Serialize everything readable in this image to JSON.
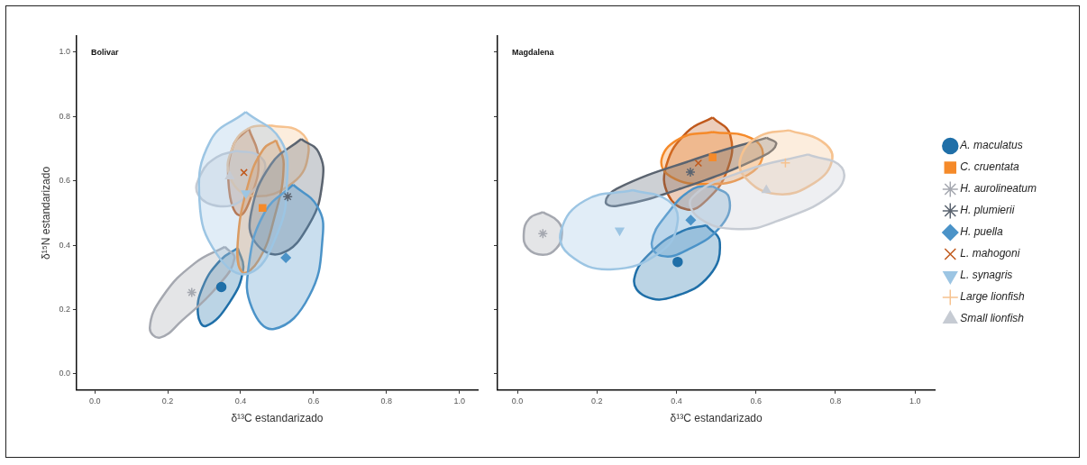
{
  "chart_data": [
    {
      "type": "scatter",
      "title": "Bolivar",
      "xlabel": "δ¹³C estandarizado",
      "ylabel": "δ¹⁵N estandarizado",
      "xlim": [
        -0.05,
        1.05
      ],
      "ylim": [
        -0.05,
        1.05
      ],
      "xticks": [
        {
          "value": 0,
          "label": "0.0"
        },
        {
          "value": 0.2,
          "label": "0.2"
        },
        {
          "value": 0.4,
          "label": "0.4"
        },
        {
          "value": 0.6,
          "label": "0.6"
        },
        {
          "value": 0.8,
          "label": "0.8"
        },
        {
          "value": 1,
          "label": "1.0"
        }
      ],
      "yticks": [
        {
          "value": 0,
          "label": "0.0"
        },
        {
          "value": 0.2,
          "label": "0.2"
        },
        {
          "value": 0.4,
          "label": "0.4"
        },
        {
          "value": 0.6,
          "label": "0.6"
        },
        {
          "value": 0.8,
          "label": "0.8"
        },
        {
          "value": 1,
          "label": "1.0"
        }
      ],
      "series": [
        {
          "type": "area",
          "color": "#9cc5e3",
          "x": [
            0.414,
            0.51,
            0.527,
            0.501,
            0.422,
            0.335,
            0.287,
            0.318
          ],
          "values": [
            0.814,
            0.726,
            0.595,
            0.437,
            0.312,
            0.372,
            0.54,
            0.726
          ]
        },
        {
          "type": "area",
          "color": "#a5a8b0",
          "x": [
            0.357,
            0.383,
            0.335,
            0.24,
            0.179,
            0.151,
            0.187,
            0.274
          ],
          "values": [
            0.395,
            0.358,
            0.27,
            0.167,
            0.113,
            0.144,
            0.242,
            0.344
          ]
        },
        {
          "type": "area",
          "color": "#4b93c8",
          "x": [
            0.544,
            0.61,
            0.625,
            0.588,
            0.492,
            0.431,
            0.422,
            0.466
          ],
          "values": [
            0.588,
            0.521,
            0.428,
            0.242,
            0.14,
            0.205,
            0.335,
            0.502
          ]
        },
        {
          "type": "area",
          "color": "#5b6470",
          "x": [
            0.566,
            0.614,
            0.624,
            0.588,
            0.51,
            0.44,
            0.429,
            0.483
          ],
          "values": [
            0.73,
            0.688,
            0.595,
            0.465,
            0.374,
            0.409,
            0.502,
            0.651
          ]
        },
        {
          "type": "area",
          "color": "#f58a2a",
          "x": [
            0.497,
            0.518,
            0.492,
            0.449,
            0.405,
            0.392,
            0.422,
            0.462
          ],
          "values": [
            0.726,
            0.651,
            0.484,
            0.353,
            0.316,
            0.409,
            0.595,
            0.698
          ]
        },
        {
          "type": "area",
          "color": "#c6cbd3",
          "x": [
            0.388,
            0.449,
            0.466,
            0.414,
            0.344,
            0.283,
            0.292,
            0.335
          ],
          "values": [
            0.693,
            0.679,
            0.633,
            0.549,
            0.521,
            0.558,
            0.623,
            0.674
          ]
        },
        {
          "type": "area",
          "color": "#f6c28f",
          "x": [
            0.483,
            0.562,
            0.586,
            0.544,
            0.431,
            0.37,
            0.379,
            0.422
          ],
          "values": [
            0.772,
            0.753,
            0.688,
            0.595,
            0.553,
            0.614,
            0.707,
            0.763
          ]
        },
        {
          "type": "area",
          "color": "#c0591c",
          "x": [
            0.422,
            0.449,
            0.431,
            0.396,
            0.368,
            0.379
          ],
          "values": [
            0.763,
            0.67,
            0.558,
            0.493,
            0.577,
            0.707
          ]
        },
        {
          "type": "area",
          "color": "#1f6fa8",
          "x": [
            0.392,
            0.407,
            0.37,
            0.305,
            0.283,
            0.296,
            0.344
          ],
          "values": [
            0.391,
            0.326,
            0.223,
            0.149,
            0.186,
            0.27,
            0.353
          ]
        },
        {
          "color": "#1f6fa8",
          "marker": "circle",
          "x": [
            0.347
          ],
          "values": [
            0.27
          ]
        },
        {
          "color": "#f58a2a",
          "marker": "square",
          "x": [
            0.46
          ],
          "values": [
            0.516
          ]
        },
        {
          "color": "#a5a8b0",
          "x": [
            0.266
          ],
          "values": [
            0.253
          ]
        },
        {
          "color": "#5b6470",
          "x": [
            0.529
          ],
          "values": [
            0.551
          ]
        },
        {
          "color": "#4b93c8",
          "marker": "diamond",
          "x": [
            0.524
          ],
          "values": [
            0.361
          ]
        },
        {
          "color": "#c0591c",
          "marker": "cross",
          "x": [
            0.409
          ],
          "values": [
            0.626
          ]
        },
        {
          "color": "#9cc5e3",
          "marker": "triangle-down",
          "x": [
            0.414
          ],
          "values": [
            0.561
          ]
        },
        {
          "color": "#c6cbd3",
          "marker": "triangle",
          "x": [
            0.37
          ],
          "values": [
            0.614
          ]
        }
      ]
    },
    {
      "type": "scatter",
      "title": "Magdalena",
      "xlabel": "δ¹³C estandarizado",
      "tick_labels": "x",
      "legend": "right",
      "xlim": [
        -0.05,
        1.05
      ],
      "ylim": [
        -0.05,
        1.05
      ],
      "xticks": [
        {
          "value": 0,
          "label": "0.0"
        },
        {
          "value": 0.2,
          "label": "0.2"
        },
        {
          "value": 0.4,
          "label": "0.4"
        },
        {
          "value": 0.6,
          "label": "0.6"
        },
        {
          "value": 0.8,
          "label": "0.8"
        },
        {
          "value": 1,
          "label": "1.0"
        }
      ],
      "yticks": [
        {
          "value": 0,
          "label": null
        },
        {
          "value": 0.2,
          "label": null
        },
        {
          "value": 0.4,
          "label": null
        },
        {
          "value": 0.6,
          "label": null
        },
        {
          "value": 0.8,
          "label": null
        },
        {
          "value": 1,
          "label": null
        }
      ],
      "series": [
        {
          "type": "area",
          "color": "#c6cbd3",
          "x": [
            0.731,
            0.816,
            0.8,
            0.651,
            0.555,
            0.459,
            0.439,
            0.571
          ],
          "values": [
            0.682,
            0.641,
            0.566,
            0.474,
            0.45,
            0.483,
            0.548,
            0.631
          ]
        },
        {
          "type": "area",
          "color": "#f6c28f",
          "x": [
            0.683,
            0.764,
            0.792,
            0.747,
            0.651,
            0.571,
            0.563,
            0.611
          ],
          "values": [
            0.757,
            0.724,
            0.669,
            0.594,
            0.559,
            0.613,
            0.678,
            0.74
          ]
        },
        {
          "type": "area",
          "color": "#9cc5e3",
          "x": [
            0.29,
            0.379,
            0.403,
            0.362,
            0.234,
            0.13,
            0.11,
            0.17
          ],
          "values": [
            0.571,
            0.539,
            0.474,
            0.381,
            0.325,
            0.371,
            0.446,
            0.539
          ]
        },
        {
          "type": "area",
          "color": "#a5a8b0",
          "x": [
            0.064,
            0.102,
            0.112,
            0.098,
            0.064,
            0.026,
            0.016,
            0.03
          ],
          "values": [
            0.503,
            0.474,
            0.436,
            0.39,
            0.37,
            0.39,
            0.436,
            0.483
          ]
        },
        {
          "type": "area",
          "color": "#4b93c8",
          "x": [
            0.491,
            0.532,
            0.515,
            0.427,
            0.362,
            0.338,
            0.379,
            0.443
          ],
          "values": [
            0.583,
            0.548,
            0.464,
            0.385,
            0.367,
            0.409,
            0.501,
            0.576
          ]
        },
        {
          "type": "area",
          "color": "#1f6fa8",
          "x": [
            0.475,
            0.509,
            0.483,
            0.395,
            0.322,
            0.294,
            0.346,
            0.419
          ],
          "values": [
            0.462,
            0.409,
            0.306,
            0.241,
            0.241,
            0.297,
            0.39,
            0.446
          ]
        },
        {
          "type": "area",
          "color": "#5b6470",
          "x": [
            0.627,
            0.651,
            0.619,
            0.411,
            0.25,
            0.222,
            0.25,
            0.451
          ],
          "values": [
            0.734,
            0.715,
            0.678,
            0.576,
            0.522,
            0.534,
            0.576,
            0.669
          ]
        },
        {
          "type": "area",
          "color": "#f58a2a",
          "x": [
            0.491,
            0.587,
            0.617,
            0.571,
            0.475,
            0.386,
            0.363,
            0.411
          ],
          "values": [
            0.752,
            0.733,
            0.678,
            0.613,
            0.59,
            0.613,
            0.669,
            0.733
          ]
        },
        {
          "type": "area",
          "color": "#c0591c",
          "x": [
            0.491,
            0.535,
            0.527,
            0.475,
            0.427,
            0.379,
            0.375,
            0.427
          ],
          "values": [
            0.797,
            0.743,
            0.631,
            0.539,
            0.511,
            0.557,
            0.65,
            0.752
          ]
        },
        {
          "name": "A. maculatus",
          "color": "#1f6fa8",
          "marker": "circle",
          "x": [
            0.403
          ],
          "values": [
            0.348
          ]
        },
        {
          "name": "C. cruentata",
          "color": "#f58a2a",
          "marker": "square",
          "x": [
            0.491
          ],
          "values": [
            0.673
          ]
        },
        {
          "name": "H. aurolineatum",
          "color": "#a5a8b0",
          "x": [
            0.064
          ],
          "values": [
            0.436
          ]
        },
        {
          "name": "H. plumierii",
          "color": "#5b6470",
          "x": [
            0.435
          ],
          "values": [
            0.627
          ]
        },
        {
          "name": "H. puella",
          "color": "#4b93c8",
          "marker": "diamond",
          "x": [
            0.436
          ],
          "values": [
            0.478
          ]
        },
        {
          "name": "L. mahogoni",
          "color": "#c0591c",
          "marker": "cross",
          "x": [
            0.455
          ],
          "values": [
            0.655
          ]
        },
        {
          "name": "L. synagris",
          "color": "#9cc5e3",
          "marker": "triangle-down",
          "x": [
            0.257
          ],
          "values": [
            0.446
          ]
        },
        {
          "name": "Large lionfish",
          "color": "#f6c28f",
          "marker": "plus",
          "x": [
            0.674
          ],
          "values": [
            0.656
          ]
        },
        {
          "name": "Small lionfish",
          "color": "#c6cbd3",
          "marker": "triangle",
          "x": [
            0.626
          ],
          "values": [
            0.571
          ]
        }
      ]
    }
  ]
}
